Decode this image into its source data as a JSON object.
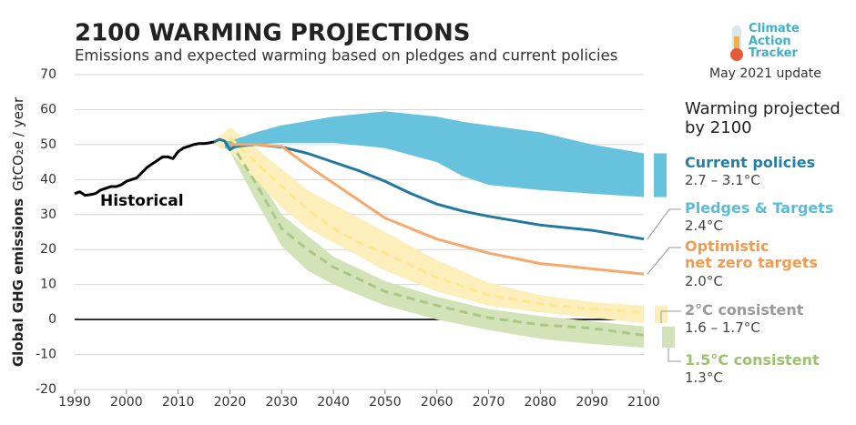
{
  "chart_data": {
    "type": "line",
    "title": "2100 WARMING PROJECTIONS",
    "subtitle": "Emissions and expected warming based on pledges and current policies",
    "ylabel": "Global GHG emissions",
    "yunit": "GtCO₂e / year",
    "logo": "Climate\nAction\nTracker",
    "update": "May 2021 update",
    "legend_title": "Warming projected\nby 2100",
    "xlim": [
      1990,
      2100
    ],
    "xticks": [
      1990,
      2000,
      2010,
      2020,
      2030,
      2040,
      2050,
      2060,
      2070,
      2080,
      2090,
      2100
    ],
    "ylim": [
      -20,
      70
    ],
    "yticks": [
      -20,
      -10,
      0,
      10,
      20,
      30,
      40,
      50,
      60,
      70
    ],
    "grid": true,
    "series": [
      {
        "name": "Historical",
        "color": "#000000",
        "x": [
          1990,
          1991,
          1992,
          1993,
          1994,
          1995,
          1996,
          1997,
          1998,
          1999,
          2000,
          2001,
          2002,
          2003,
          2004,
          2005,
          2006,
          2007,
          2008,
          2009,
          2010,
          2011,
          2012,
          2013,
          2014,
          2015,
          2016,
          2017
        ],
        "values": [
          36,
          36.5,
          35.5,
          35.7,
          36,
          37,
          37.5,
          38,
          38,
          38.5,
          39.5,
          40,
          40.5,
          42,
          43.5,
          44.5,
          45.5,
          46.5,
          46.5,
          46,
          48,
          49,
          49.5,
          50,
          50.3,
          50.3,
          50.5,
          50.8
        ]
      },
      {
        "name": "Current policies",
        "warming": "2.7 – 3.1°C",
        "color": "#66c2dd",
        "label_color": "#2180a6",
        "band": {
          "x": [
            2019,
            2020,
            2025,
            2030,
            2040,
            2050,
            2060,
            2065,
            2070,
            2080,
            2090,
            2100
          ],
          "upper": [
            51,
            51,
            53.5,
            55.5,
            58,
            59.5,
            58,
            56.5,
            55.5,
            53.5,
            50,
            47.5
          ],
          "lower": [
            49,
            48.5,
            50,
            50.5,
            50.5,
            49,
            45,
            41,
            38.5,
            37,
            36,
            35
          ]
        }
      },
      {
        "name": "Pledges & Targets",
        "warming": "2.4°C",
        "color": "#2378a0",
        "label_color": "#5bbcd9",
        "x": [
          2017,
          2018,
          2019,
          2020,
          2021,
          2025,
          2030,
          2035,
          2040,
          2045,
          2050,
          2055,
          2060,
          2065,
          2070,
          2080,
          2090,
          2100
        ],
        "values": [
          50.8,
          51.5,
          51,
          48.5,
          49.5,
          50,
          49.3,
          47.5,
          45,
          42.5,
          39.5,
          36,
          33,
          31,
          29.5,
          27,
          25.5,
          23
        ]
      },
      {
        "name": "Optimistic\nnet zero targets",
        "warming": "2.0°C",
        "color": "#f6a96b",
        "label_color": "#f39a4e",
        "x": [
          2020,
          2025,
          2030,
          2035,
          2040,
          2045,
          2050,
          2055,
          2060,
          2070,
          2080,
          2090,
          2100
        ],
        "values": [
          50,
          50,
          49.5,
          44,
          39,
          34,
          29,
          26,
          23,
          19,
          16,
          14.5,
          13
        ]
      },
      {
        "name": "2°C consistent",
        "warming": "1.6 – 1.7°C",
        "color": "#fde88f",
        "band_color": "#fcefbb",
        "label_color": "#9a9a9a",
        "dashed": true,
        "x": [
          2020,
          2025,
          2030,
          2035,
          2040,
          2045,
          2050,
          2060,
          2070,
          2080,
          2090,
          2100
        ],
        "values": [
          52,
          45,
          38,
          31.5,
          26,
          22,
          19,
          12,
          7,
          4.5,
          3,
          2
        ],
        "band": {
          "x": [
            2017,
            2020,
            2025,
            2030,
            2035,
            2040,
            2050,
            2060,
            2070,
            2080,
            2090,
            2100
          ],
          "upper": [
            51,
            55,
            49,
            43,
            37,
            33,
            25,
            17,
            10.5,
            7,
            5,
            4
          ],
          "lower": [
            50,
            48,
            40,
            32,
            26,
            22,
            14,
            8,
            4,
            2,
            0.5,
            -1
          ]
        }
      },
      {
        "name": "1.5°C consistent",
        "warming": "1.3°C",
        "color": "#a9c786",
        "band_color": "#d3e3b8",
        "label_color": "#9dc26e",
        "dashed": true,
        "x": [
          2020,
          2025,
          2030,
          2035,
          2040,
          2050,
          2060,
          2070,
          2080,
          2090,
          2100
        ],
        "values": [
          51,
          39,
          26,
          20,
          15,
          8,
          4,
          0.5,
          -1.5,
          -2.5,
          -4.5
        ],
        "band": {
          "x": [
            2020,
            2025,
            2030,
            2035,
            2040,
            2050,
            2060,
            2070,
            2080,
            2090,
            2100
          ],
          "upper": [
            53,
            42,
            30,
            24,
            18,
            11,
            6.5,
            3,
            1,
            -0.5,
            -2
          ],
          "lower": [
            48,
            34,
            21,
            14,
            10,
            4,
            0,
            -3,
            -5.5,
            -7,
            -8
          ]
        }
      }
    ]
  }
}
